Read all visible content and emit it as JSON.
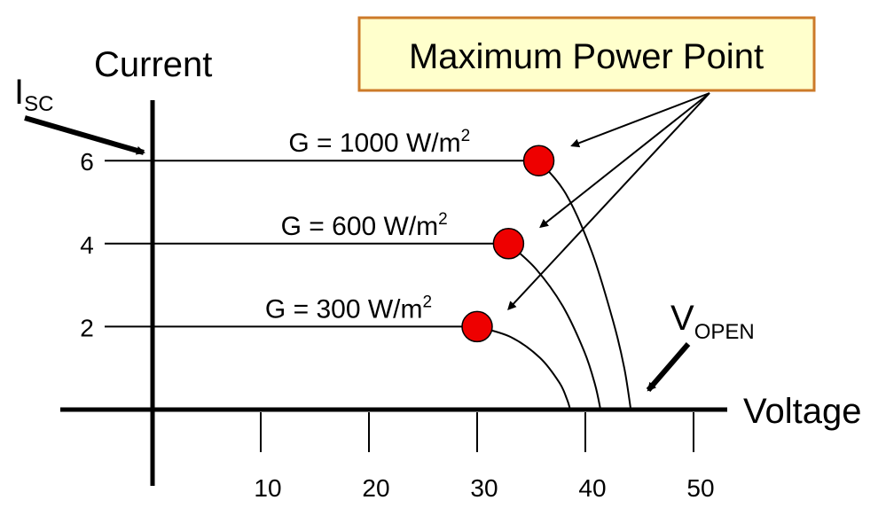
{
  "chart_data": {
    "type": "line",
    "xlabel": "Voltage",
    "ylabel": "Current",
    "x_ticks": [
      10,
      20,
      30,
      40,
      50
    ],
    "y_ticks": [
      2,
      4,
      6
    ],
    "xlim": [
      0,
      52
    ],
    "ylim": [
      0,
      7
    ],
    "grid": false,
    "series": [
      {
        "name_prefix": "G = 1000 W/m",
        "name_sup": "2",
        "isc": 6,
        "vopen": 44.2,
        "mpp": {
          "x": 35.7,
          "y": 6
        },
        "points": [
          [
            0,
            6
          ],
          [
            35.7,
            6
          ],
          [
            38.2,
            5.2
          ],
          [
            40.6,
            3.8
          ],
          [
            42.6,
            2.1
          ],
          [
            43.6,
            1.0
          ],
          [
            44.2,
            0
          ]
        ]
      },
      {
        "name_prefix": "G = 600 W/m",
        "name_sup": "2",
        "isc": 4,
        "vopen": 41.4,
        "mpp": {
          "x": 32.9,
          "y": 4
        },
        "points": [
          [
            0,
            4
          ],
          [
            32.9,
            4
          ],
          [
            35.4,
            3.4
          ],
          [
            37.9,
            2.5
          ],
          [
            39.9,
            1.4
          ],
          [
            40.9,
            0.6
          ],
          [
            41.4,
            0
          ]
        ]
      },
      {
        "name_prefix": "G = 300 W/m",
        "name_sup": "2",
        "isc": 2,
        "vopen": 38.6,
        "mpp": {
          "x": 30.0,
          "y": 2
        },
        "points": [
          [
            0,
            2
          ],
          [
            30.0,
            2
          ],
          [
            33.1,
            1.75
          ],
          [
            35.8,
            1.25
          ],
          [
            37.6,
            0.65
          ],
          [
            38.3,
            0.25
          ],
          [
            38.6,
            0
          ]
        ]
      }
    ],
    "annotations": {
      "mpp_label": "Maximum Power Point",
      "isc_main": "I",
      "isc_sub": "SC",
      "vopen_main": "V",
      "vopen_sub": "OPEN"
    },
    "colors": {
      "mpp_fill": "#ee0000",
      "mpp_box_fill": "#ffffcc",
      "mpp_box_border": "#cc7a29"
    }
  }
}
